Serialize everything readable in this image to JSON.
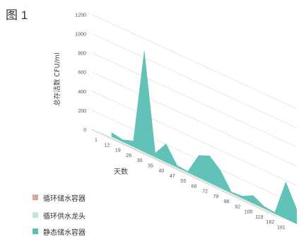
{
  "figure_label": "图 1",
  "chart_data": {
    "type": "area",
    "ylabel": "总存活数 CFU/ml",
    "xlabel": "天数",
    "ylim": [
      0,
      1200
    ],
    "yticks": [
      0,
      200,
      400,
      600,
      800,
      1000,
      1200
    ],
    "xticks": [
      "1",
      "12",
      "19",
      "26",
      "30",
      "35",
      "40",
      "47",
      "55",
      "68",
      "72",
      "79",
      "86",
      "92",
      "100",
      "119",
      "162",
      "181"
    ],
    "grid": true,
    "legend_position": "bottom-left",
    "series": [
      {
        "name": "循环储水容器",
        "color": "#d8a89a",
        "values": [
          0,
          0,
          0,
          0,
          0,
          0,
          0,
          0,
          0,
          0,
          0,
          0,
          0,
          0,
          0,
          0,
          0,
          0
        ]
      },
      {
        "name": "循环供水龙头",
        "color": "#bfe3de",
        "values": [
          0,
          0,
          0,
          0,
          0,
          0,
          0,
          0,
          0,
          0,
          0,
          0,
          0,
          0,
          0,
          0,
          0,
          0
        ]
      },
      {
        "name": "静态储水容器",
        "color": "#5bbfb4",
        "values": [
          40,
          20,
          60,
          1050,
          40,
          190,
          20,
          10,
          230,
          280,
          180,
          10,
          20,
          80,
          20,
          10,
          380,
          150
        ]
      }
    ]
  }
}
